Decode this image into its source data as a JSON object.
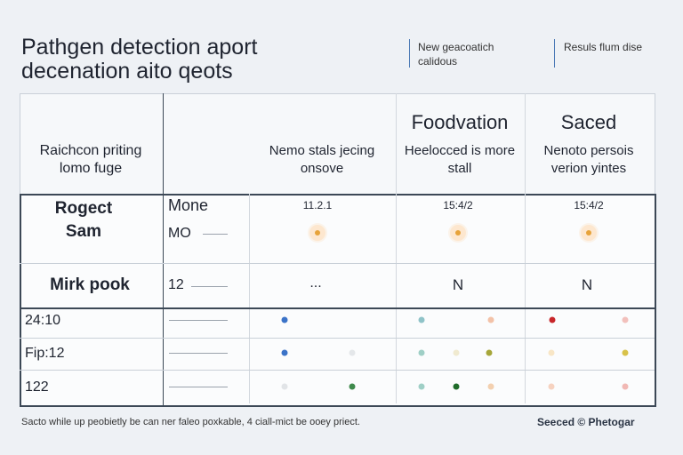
{
  "header": {
    "title_lines": [
      "Pathgen detection aport",
      "decenation aito qeots"
    ],
    "notes": [
      "New geacoatich calidous",
      "Resuls flum dise"
    ]
  },
  "table": {
    "header": {
      "col1": "Raichcon priting lomo fuge",
      "col3": "Nemo stals jecing onsove",
      "col4_title": "Foodvation",
      "col4_sub": "Heelocced is more stall",
      "col5_title": "Saced",
      "col5_sub": "Nenoto persois verion yintes"
    },
    "rows": [
      [
        "Rogect Sam",
        "Mone",
        "MO",
        "11.2.1",
        "15:4/2",
        "15:4/2"
      ],
      [
        "Mirk pook",
        "12",
        "...",
        "N",
        "N"
      ],
      [
        "24:10"
      ],
      [
        "Fip:12"
      ],
      [
        "122"
      ]
    ]
  },
  "footer": {
    "note": "Sacto while up peobietly be can ner faleo poxkable, 4 ciall-mict be ooey priect.",
    "credit": "Seeced © Phetogar"
  }
}
